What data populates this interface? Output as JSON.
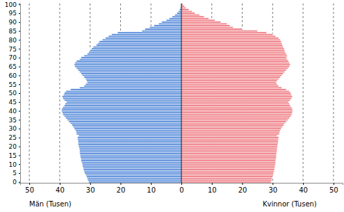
{
  "chart_data": {
    "type": "bar",
    "orientation": "horizontal",
    "grid": true,
    "categories": [
      0,
      1,
      2,
      3,
      4,
      5,
      6,
      7,
      8,
      9,
      10,
      11,
      12,
      13,
      14,
      15,
      16,
      17,
      18,
      19,
      20,
      21,
      22,
      23,
      24,
      25,
      26,
      27,
      28,
      29,
      30,
      31,
      32,
      33,
      34,
      35,
      36,
      37,
      38,
      39,
      40,
      41,
      42,
      43,
      44,
      45,
      46,
      47,
      48,
      49,
      50,
      51,
      52,
      53,
      54,
      55,
      56,
      57,
      58,
      59,
      60,
      61,
      62,
      63,
      64,
      65,
      66,
      67,
      68,
      69,
      70,
      71,
      72,
      73,
      74,
      75,
      76,
      77,
      78,
      79,
      80,
      81,
      82,
      83,
      84,
      85,
      86,
      87,
      88,
      89,
      90,
      91,
      92,
      93,
      94,
      95,
      96,
      97,
      98,
      99,
      100
    ],
    "ylim": [
      -0.5,
      100.5
    ],
    "yticks": [
      0,
      5,
      10,
      15,
      20,
      25,
      30,
      35,
      40,
      45,
      50,
      55,
      60,
      65,
      70,
      75,
      80,
      85,
      90,
      95,
      100
    ],
    "xlim": [
      0,
      53
    ],
    "xticks": [
      0,
      10,
      20,
      30,
      40,
      50
    ],
    "series": [
      {
        "name": "Män (Tusen)",
        "color": "#5a8ddb",
        "values": [
          30.5,
          30.8,
          31.0,
          31.2,
          31.5,
          31.8,
          32.0,
          32.2,
          32.3,
          32.5,
          32.6,
          32.8,
          33.0,
          33.0,
          33.2,
          33.3,
          33.4,
          33.5,
          33.5,
          33.6,
          33.8,
          33.9,
          34.0,
          34.0,
          34.1,
          34.2,
          33.8,
          34.5,
          34.6,
          34.8,
          35.2,
          35.6,
          36.0,
          36.5,
          37.0,
          37.5,
          38.0,
          38.5,
          39.0,
          39.2,
          39.4,
          39.3,
          39.0,
          38.5,
          38.2,
          37.8,
          38.5,
          39.0,
          39.2,
          38.8,
          38.5,
          38.0,
          36.5,
          33.5,
          32.0,
          31.5,
          31.0,
          31.2,
          31.5,
          32.0,
          32.5,
          33.0,
          33.5,
          34.0,
          34.5,
          35.0,
          35.2,
          35.0,
          34.5,
          33.5,
          33.0,
          32.0,
          31.0,
          30.5,
          30.0,
          29.5,
          29.0,
          28.0,
          27.5,
          27.0,
          26.0,
          25.0,
          24.0,
          23.0,
          21.0,
          13.0,
          12.0,
          10.5,
          9.0,
          7.5,
          6.5,
          5.0,
          4.0,
          3.0,
          2.2,
          1.5,
          1.0,
          0.6,
          0.4,
          0.2,
          0.1
        ]
      },
      {
        "name": "Kvinnor (Tusen)",
        "color": "#ef7f86",
        "values": [
          29.5,
          29.7,
          29.8,
          30.0,
          30.2,
          30.3,
          30.5,
          30.6,
          30.7,
          30.8,
          30.9,
          31.0,
          31.0,
          31.1,
          31.2,
          31.2,
          31.3,
          31.4,
          31.5,
          31.5,
          31.6,
          31.7,
          31.8,
          31.8,
          31.9,
          32.0,
          31.5,
          32.2,
          32.3,
          32.5,
          32.8,
          33.2,
          33.6,
          34.0,
          34.5,
          35.0,
          35.5,
          36.0,
          36.3,
          36.5,
          36.6,
          36.5,
          36.2,
          35.8,
          35.5,
          35.2,
          35.8,
          36.2,
          36.5,
          36.2,
          36.0,
          35.5,
          34.5,
          33.0,
          32.0,
          31.5,
          31.2,
          31.5,
          32.0,
          32.5,
          33.0,
          33.5,
          34.0,
          34.5,
          35.0,
          35.5,
          35.8,
          35.5,
          35.2,
          34.8,
          34.5,
          34.8,
          34.5,
          34.2,
          34.0,
          33.8,
          33.5,
          33.2,
          33.0,
          32.8,
          32.5,
          32.0,
          31.0,
          30.0,
          28.0,
          25.0,
          20.0,
          17.0,
          16.0,
          15.0,
          13.0,
          11.0,
          9.0,
          7.5,
          6.0,
          4.5,
          3.5,
          2.5,
          1.5,
          1.0,
          0.5
        ]
      }
    ]
  }
}
